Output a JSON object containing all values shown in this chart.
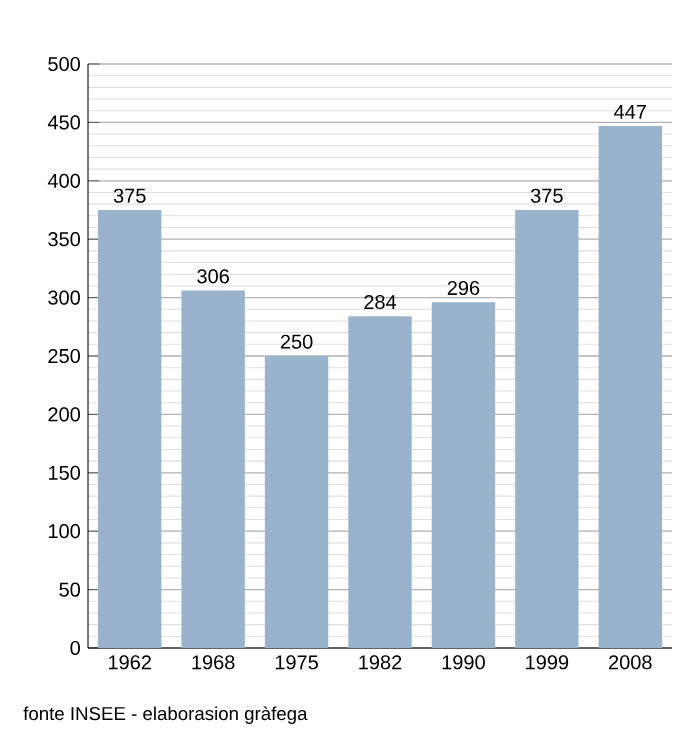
{
  "chart_data": {
    "type": "bar",
    "categories": [
      "1962",
      "1968",
      "1975",
      "1982",
      "1990",
      "1999",
      "2008"
    ],
    "values": [
      375,
      306,
      250,
      284,
      296,
      375,
      447
    ],
    "color": "#9ab3cc",
    "ylim": [
      0,
      500
    ],
    "yticks": [
      0,
      50,
      100,
      150,
      200,
      250,
      300,
      350,
      400,
      450,
      500
    ],
    "grid": "y",
    "data_labels": true,
    "annotations": [
      "fonte INSEE - elaborasion gràfega"
    ]
  }
}
